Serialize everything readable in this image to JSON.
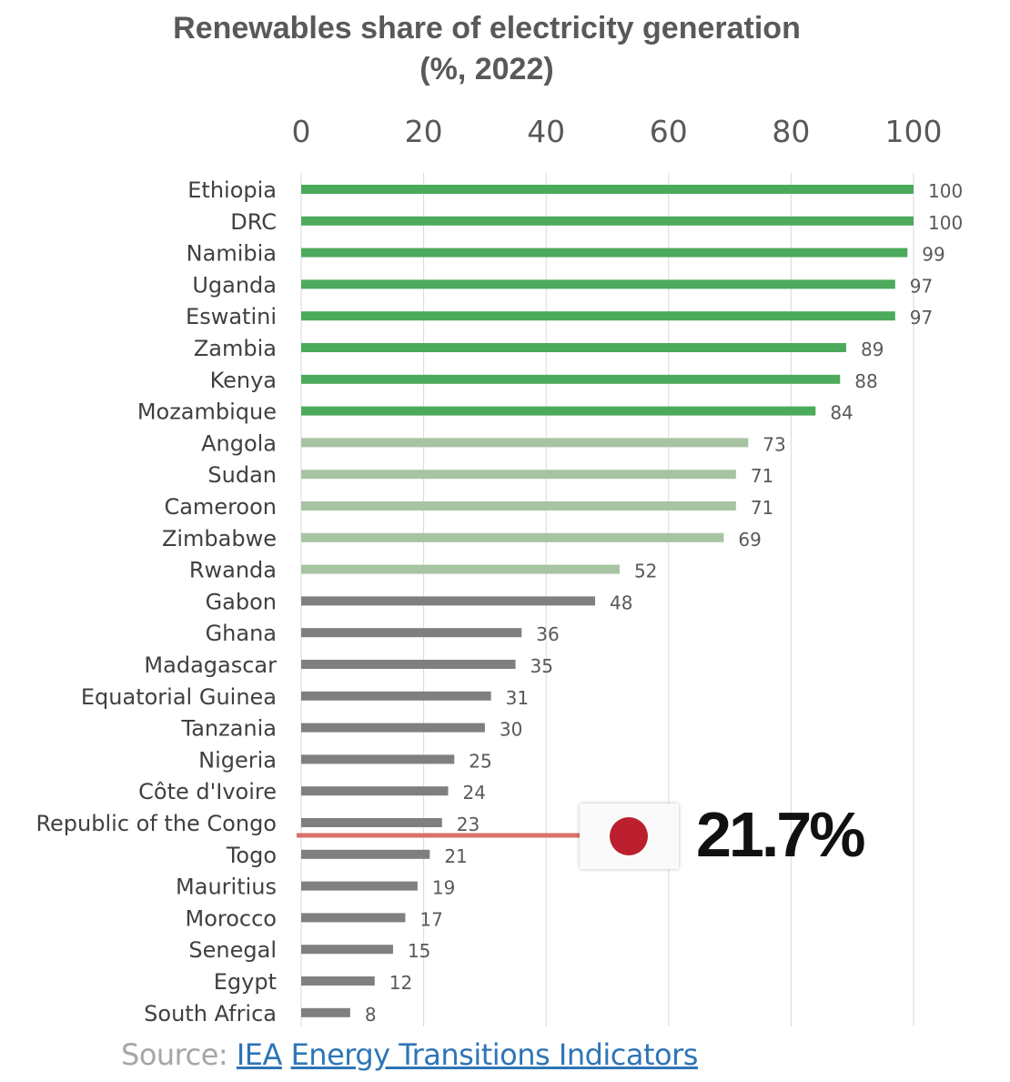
{
  "chart_data": {
    "type": "bar",
    "orientation": "horizontal",
    "title": "Renewables share of electricity generation",
    "subtitle": "(%, 2022)",
    "xlim": [
      0,
      100
    ],
    "x_ticks": [
      0,
      20,
      40,
      60,
      80,
      100
    ],
    "grid": true,
    "categories": [
      "Ethiopia",
      "DRC",
      "Namibia",
      "Uganda",
      "Eswatini",
      "Zambia",
      "Kenya",
      "Mozambique",
      "Angola",
      "Sudan",
      "Cameroon",
      "Zimbabwe",
      "Rwanda",
      "Gabon",
      "Ghana",
      "Madagascar",
      "Equatorial Guinea",
      "Tanzania",
      "Nigeria",
      "Côte d'Ivoire",
      "Republic of the Congo",
      "Togo",
      "Mauritius",
      "Morocco",
      "Senegal",
      "Egypt",
      "South Africa"
    ],
    "values": [
      100,
      100,
      99,
      97,
      97,
      89,
      88,
      84,
      73,
      71,
      71,
      69,
      52,
      48,
      36,
      35,
      31,
      30,
      25,
      24,
      23,
      21,
      19,
      17,
      15,
      12,
      8
    ],
    "value_labels": [
      "100",
      "100",
      "99",
      "97",
      "97",
      "89",
      "88",
      "84",
      "73",
      "71",
      "71",
      "69",
      "52",
      "48",
      "36",
      "35",
      "31",
      "30",
      "25",
      "24",
      "23",
      "21",
      "19",
      "17",
      "15",
      "12",
      "8"
    ],
    "groups": [
      "high",
      "high",
      "high",
      "high",
      "high",
      "high",
      "high",
      "high",
      "mid",
      "mid",
      "mid",
      "mid",
      "mid",
      "low",
      "low",
      "low",
      "low",
      "low",
      "low",
      "low",
      "low",
      "low",
      "low",
      "low",
      "low",
      "low",
      "low"
    ],
    "group_colors": {
      "high": "#4caa5c",
      "mid": "#a6c4a1",
      "low": "#7f7f7f"
    },
    "reference_line": {
      "value": 21.7,
      "label": "21.7%",
      "color": "#d9706a",
      "marker": "Japan flag"
    }
  },
  "colors": {
    "flag_red": "#bc1f2d",
    "grid": "#d9d9d9",
    "link": "#2e75b6"
  },
  "callout": {
    "value_text": "21.7%",
    "icon": "japan-flag-icon"
  },
  "source": {
    "prefix": "Source: ",
    "link1": "IEA",
    "link2": "Energy Transitions Indicators"
  }
}
